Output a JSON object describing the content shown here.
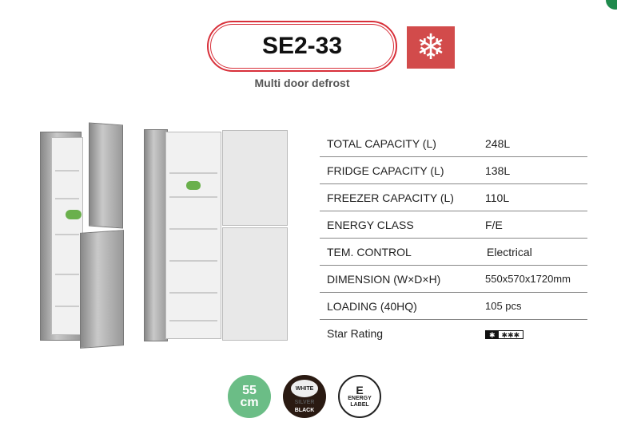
{
  "header": {
    "model": "SE2-33",
    "subtitle": "Multi door defrost",
    "icon": "snowflake-icon",
    "accent": "#d24b4b"
  },
  "specs": [
    {
      "label": "TOTAL CAPACITY (L)",
      "value": "248L"
    },
    {
      "label": "FRIDGE CAPACITY (L)",
      "value": "138L"
    },
    {
      "label": "FREEZER CAPACITY (L)",
      "value": "110L"
    },
    {
      "label": "ENERGY CLASS",
      "value": "F/E"
    },
    {
      "label": "TEM. CONTROL",
      "value": "Electrical"
    },
    {
      "label": "DIMENSION (W×D×H)",
      "value": "550x570x1720mm"
    },
    {
      "label": "LOADING (40HQ)",
      "value": "105 pcs"
    },
    {
      "label": "Star Rating",
      "value": ""
    }
  ],
  "star_rating": {
    "freezer": "✱",
    "compartment": "✱✱✱"
  },
  "badges": {
    "width": {
      "number": "55",
      "unit": "cm"
    },
    "colors": [
      "WHITE",
      "SILVER",
      "BLACK"
    ],
    "energy": {
      "letter": "E",
      "line1": "ENERGY",
      "line2": "LABEL"
    }
  }
}
